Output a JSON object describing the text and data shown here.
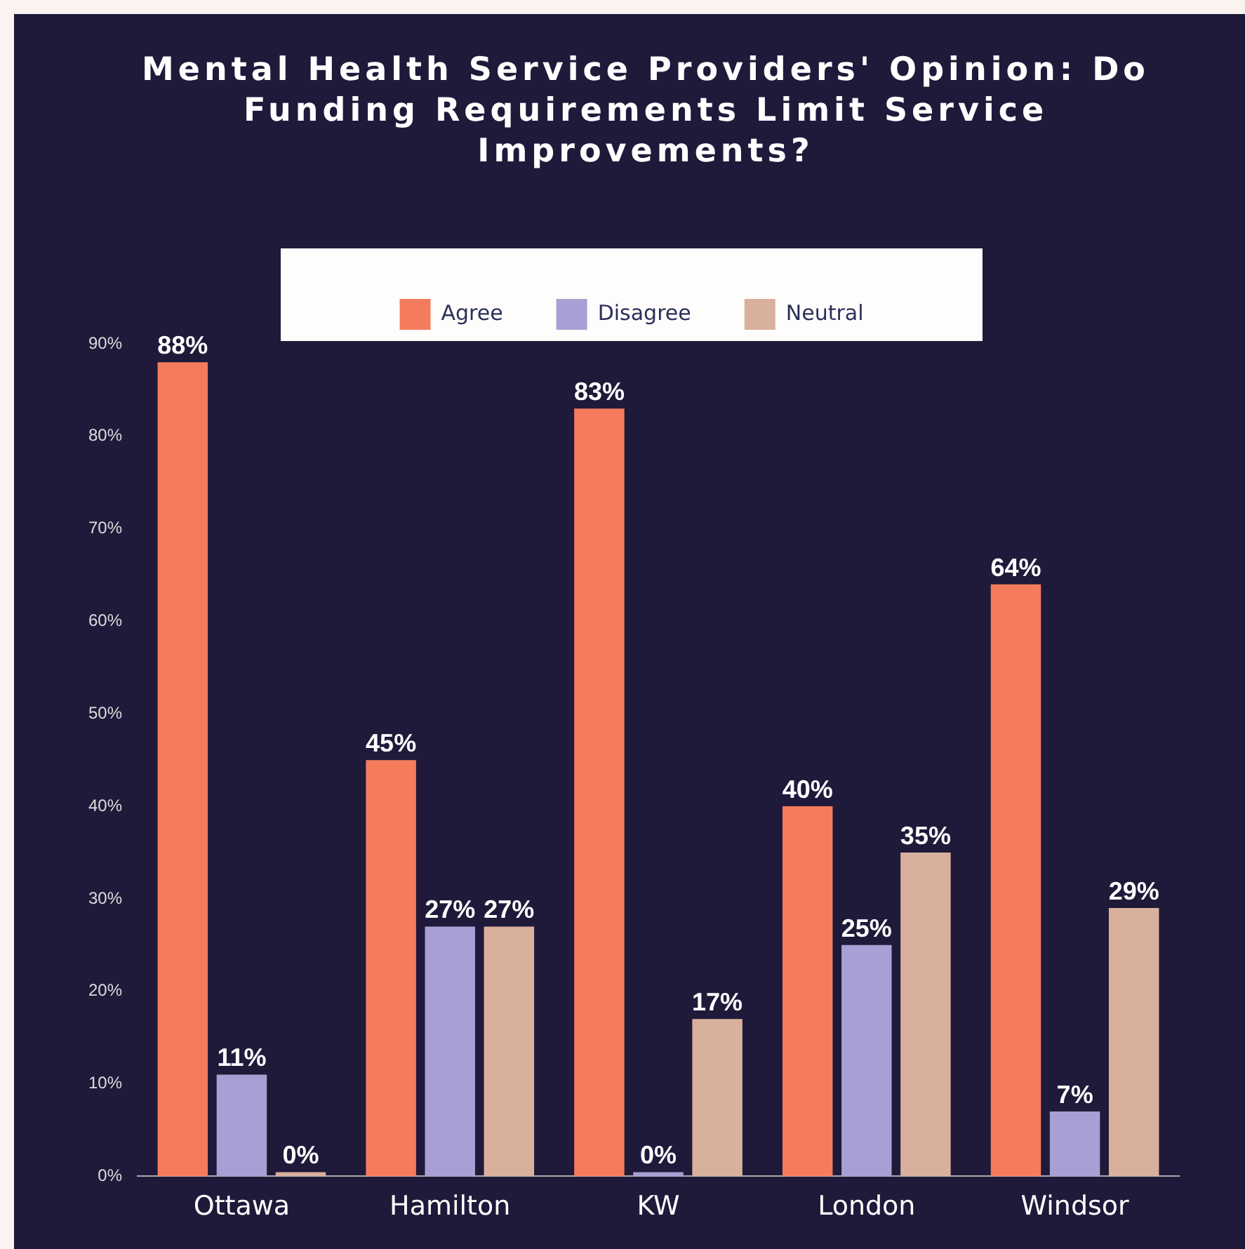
{
  "chart_data": {
    "type": "bar",
    "title": "Mental Health Service Providers' Opinion: Do Funding Requirements Limit Service Improvements?",
    "categories": [
      "Ottawa",
      "Hamilton",
      "KW",
      "London",
      "Windsor"
    ],
    "series": [
      {
        "name": "Agree",
        "color": "#f47c5c",
        "values": [
          88,
          45,
          83,
          40,
          64
        ],
        "value_labels": [
          "88%",
          "45%",
          "83%",
          "40%",
          "64%"
        ]
      },
      {
        "name": "Disagree",
        "color": "#a99fd4",
        "values": [
          11,
          27,
          0,
          25,
          7
        ],
        "value_labels": [
          "11%",
          "27%",
          "0%",
          "25%",
          "7%"
        ]
      },
      {
        "name": "Neutral",
        "color": "#d9b09c",
        "values": [
          0,
          27,
          17,
          35,
          29
        ],
        "value_labels": [
          "0%",
          "27%",
          "17%",
          "35%",
          "29%"
        ]
      }
    ],
    "ylim": [
      0,
      90
    ],
    "yticks": [
      {
        "value": 0,
        "label": "0%"
      },
      {
        "value": 10,
        "label": "10%"
      },
      {
        "value": 20,
        "label": "20%"
      },
      {
        "value": 30,
        "label": "30%"
      },
      {
        "value": 40,
        "label": "40%"
      },
      {
        "value": 50,
        "label": "50%"
      },
      {
        "value": 60,
        "label": "60%"
      },
      {
        "value": 70,
        "label": "70%"
      },
      {
        "value": 80,
        "label": "80%"
      },
      {
        "value": 90,
        "label": "90%"
      }
    ],
    "grid": false,
    "legend": "top"
  }
}
